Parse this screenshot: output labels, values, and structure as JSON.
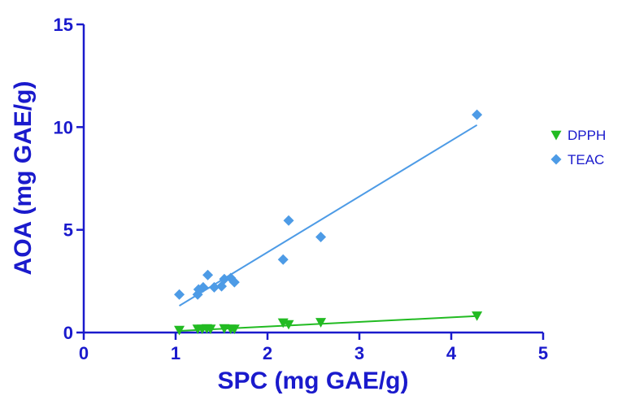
{
  "chart_data": {
    "type": "scatter",
    "xlabel": "SPC (mg GAE/g)",
    "ylabel": "AOA (mg GAE/g)",
    "xlim": [
      0,
      5
    ],
    "ylim": [
      0,
      15
    ],
    "xticks": [
      "0",
      "1",
      "2",
      "3",
      "4",
      "5"
    ],
    "yticks": [
      "0",
      "5",
      "10",
      "15"
    ],
    "legend_position": "right",
    "grid": false,
    "series": [
      {
        "name": "DPPH",
        "marker": "triangle-down",
        "color": "#22bb22",
        "x": [
          1.04,
          1.24,
          1.29,
          1.34,
          1.38,
          1.53,
          1.6,
          1.64,
          2.17,
          2.23,
          2.58,
          4.28
        ],
        "y": [
          0.12,
          0.18,
          0.18,
          0.2,
          0.18,
          0.2,
          0.18,
          0.18,
          0.48,
          0.4,
          0.5,
          0.82
        ],
        "trendline": {
          "x": [
            1.04,
            4.28
          ],
          "y": [
            0.08,
            0.8
          ]
        }
      },
      {
        "name": "TEAC",
        "marker": "diamond",
        "color": "#4d9be6",
        "x": [
          1.04,
          1.24,
          1.25,
          1.3,
          1.35,
          1.42,
          1.5,
          1.53,
          1.6,
          1.64,
          2.17,
          2.23,
          2.58,
          4.28
        ],
        "y": [
          1.85,
          1.85,
          2.1,
          2.2,
          2.8,
          2.2,
          2.25,
          2.6,
          2.65,
          2.45,
          3.55,
          5.45,
          4.65,
          10.6
        ],
        "trendline": {
          "x": [
            1.04,
            4.28
          ],
          "y": [
            1.3,
            10.1
          ]
        }
      }
    ]
  }
}
